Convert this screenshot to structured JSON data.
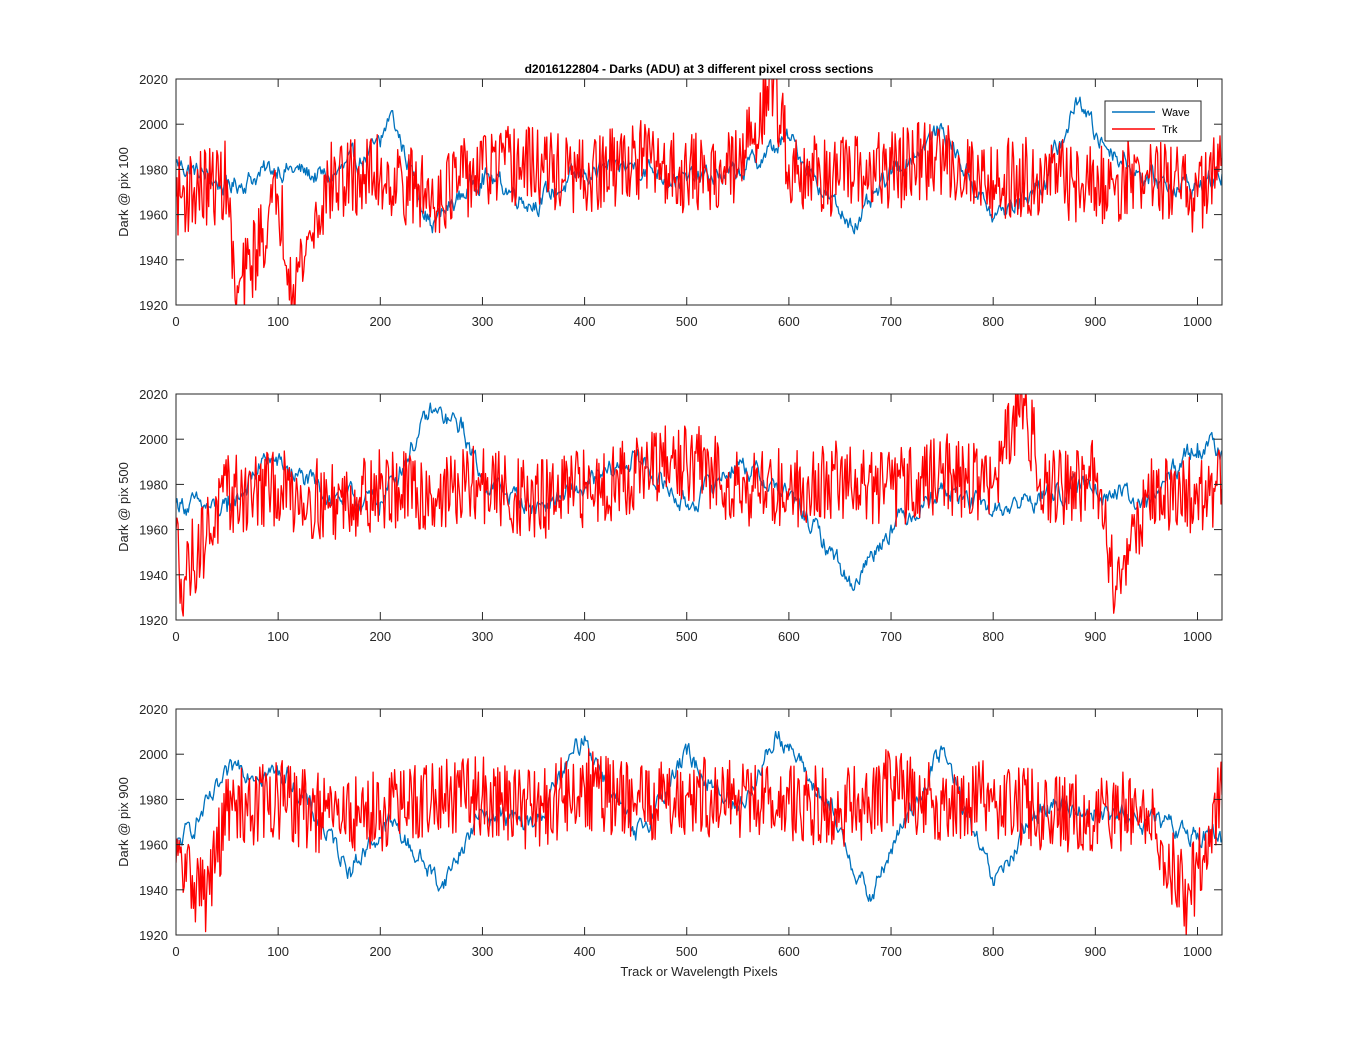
{
  "figure": {
    "title": "d2016122804 - Darks (ADU) at 3 different pixel cross sections",
    "xlabel": "Track or Wavelength Pixels"
  },
  "colors": {
    "wave": "#0072BD",
    "trk": "#FF0000",
    "axes": "#262626",
    "background": "#FFFFFF"
  },
  "legend": {
    "location": "top-right of first panel",
    "entries": [
      "Wave",
      "Trk"
    ]
  },
  "chart_data": [
    {
      "type": "line",
      "ylabel": "Dark @ pix 100",
      "xlim": [
        0,
        1024
      ],
      "ylim": [
        1920,
        2020
      ],
      "xticks": [
        0,
        100,
        200,
        300,
        400,
        500,
        600,
        700,
        800,
        900,
        1000
      ],
      "yticks": [
        1920,
        1940,
        1960,
        1980,
        2000,
        2020
      ],
      "grid": false,
      "series": [
        {
          "name": "Wave",
          "x": [
            0,
            50,
            100,
            150,
            200,
            210,
            250,
            300,
            350,
            400,
            450,
            500,
            550,
            600,
            650,
            670,
            700,
            750,
            800,
            850,
            885,
            900,
            950,
            1000,
            1024
          ],
          "y": [
            1983,
            1972,
            1981,
            1976,
            1990,
            2005,
            1955,
            1978,
            1965,
            1978,
            1982,
            1975,
            1978,
            1994,
            1960,
            1957,
            1978,
            1998,
            1958,
            1975,
            2012,
            1995,
            1976,
            1972,
            1978
          ]
        },
        {
          "name": "Trk",
          "x": [
            0,
            50,
            58,
            100,
            115,
            150,
            200,
            250,
            300,
            350,
            400,
            450,
            500,
            550,
            585,
            600,
            650,
            700,
            750,
            800,
            850,
            900,
            950,
            1000,
            1024
          ],
          "y": [
            1968,
            1975,
            1922,
            1968,
            1929,
            1974,
            1978,
            1968,
            1980,
            1982,
            1975,
            1985,
            1978,
            1980,
            2020,
            1982,
            1976,
            1980,
            1985,
            1975,
            1978,
            1972,
            1978,
            1968,
            1985
          ]
        }
      ]
    },
    {
      "type": "line",
      "ylabel": "Dark @ pix 500",
      "xlim": [
        0,
        1024
      ],
      "ylim": [
        1920,
        2020
      ],
      "xticks": [
        0,
        100,
        200,
        300,
        400,
        500,
        600,
        700,
        800,
        900,
        1000
      ],
      "yticks": [
        1920,
        1940,
        1960,
        1980,
        2000,
        2020
      ],
      "grid": false,
      "series": [
        {
          "name": "Wave",
          "x": [
            0,
            50,
            90,
            150,
            200,
            250,
            280,
            300,
            350,
            400,
            450,
            500,
            550,
            600,
            650,
            660,
            700,
            750,
            800,
            850,
            900,
            950,
            1000,
            1024
          ],
          "y": [
            1972,
            1968,
            1992,
            1975,
            1972,
            2012,
            2005,
            1982,
            1970,
            1978,
            1992,
            1970,
            1990,
            1975,
            1945,
            1935,
            1962,
            1978,
            1968,
            1975,
            1980,
            1970,
            1998,
            1995
          ]
        },
        {
          "name": "Trk",
          "x": [
            0,
            5,
            50,
            100,
            150,
            200,
            250,
            300,
            350,
            400,
            450,
            500,
            550,
            600,
            650,
            700,
            750,
            800,
            830,
            850,
            900,
            920,
            950,
            1000,
            1024
          ],
          "y": [
            1960,
            1938,
            1975,
            1978,
            1972,
            1978,
            1975,
            1980,
            1972,
            1978,
            1985,
            1990,
            1980,
            1978,
            1982,
            1978,
            1985,
            1980,
            2018,
            1978,
            1982,
            1935,
            1975,
            1975,
            1978
          ]
        }
      ]
    },
    {
      "type": "line",
      "ylabel": "Dark @ pix 900",
      "xlim": [
        0,
        1024
      ],
      "ylim": [
        1920,
        2020
      ],
      "xticks": [
        0,
        100,
        200,
        300,
        400,
        500,
        600,
        700,
        800,
        900,
        1000
      ],
      "yticks": [
        1920,
        1940,
        1960,
        1980,
        2000,
        2020
      ],
      "grid": false,
      "series": [
        {
          "name": "Wave",
          "x": [
            0,
            60,
            110,
            170,
            210,
            260,
            300,
            350,
            400,
            450,
            500,
            550,
            590,
            640,
            680,
            700,
            750,
            800,
            850,
            900,
            950,
            1000,
            1024
          ],
          "y": [
            1958,
            1995,
            1990,
            1950,
            1970,
            1942,
            1975,
            1968,
            2008,
            1962,
            2000,
            1975,
            2010,
            1975,
            1935,
            1958,
            2002,
            1942,
            1978,
            1975,
            1970,
            1965,
            1962
          ]
        },
        {
          "name": "Trk",
          "x": [
            0,
            30,
            50,
            100,
            150,
            200,
            250,
            300,
            350,
            400,
            450,
            500,
            550,
            600,
            650,
            700,
            750,
            800,
            850,
            900,
            950,
            990,
            1024
          ],
          "y": [
            1952,
            1938,
            1975,
            1980,
            1972,
            1975,
            1980,
            1982,
            1975,
            1985,
            1978,
            1982,
            1980,
            1978,
            1976,
            1985,
            1978,
            1980,
            1975,
            1972,
            1976,
            1936,
            1982
          ]
        }
      ]
    }
  ]
}
